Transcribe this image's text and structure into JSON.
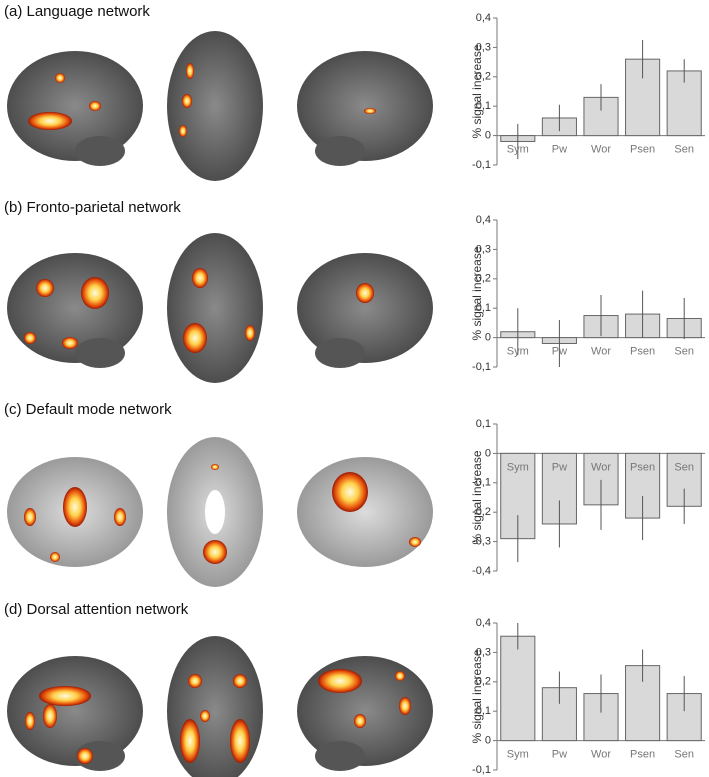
{
  "chart_data": [
    {
      "type": "bar",
      "title": "(a) Language network",
      "y_label": "% signal increase",
      "categories": [
        "Sym",
        "Pw",
        "Wor",
        "Psen",
        "Sen"
      ],
      "values": [
        -0.02,
        0.06,
        0.13,
        0.26,
        0.22
      ],
      "errors": [
        0.06,
        0.045,
        0.045,
        0.065,
        0.04
      ],
      "color": "#d9d9d9",
      "ylim": [
        -0.1,
        0.4
      ],
      "yticks": [
        {
          "value": -0.1,
          "label": "-0,1"
        },
        0,
        {
          "value": 0.1,
          "label": "0,1"
        },
        {
          "value": 0.2,
          "label": "0,2"
        },
        {
          "value": 0.3,
          "label": "0,3"
        },
        {
          "value": 0.4,
          "label": "0,4"
        }
      ]
    },
    {
      "type": "bar",
      "title": "(b) Fronto-parietal network",
      "y_label": "% signal increase",
      "categories": [
        "Sym",
        "Pw",
        "Wor",
        "Psen",
        "Sen"
      ],
      "values": [
        0.02,
        -0.02,
        0.075,
        0.08,
        0.065
      ],
      "errors": [
        0.08,
        0.08,
        0.07,
        0.08,
        0.07
      ],
      "color": "#d9d9d9",
      "ylim": [
        -0.1,
        0.4
      ],
      "yticks": [
        {
          "value": -0.1,
          "label": "-0,1"
        },
        0,
        {
          "value": 0.1,
          "label": "0,1"
        },
        {
          "value": 0.2,
          "label": "0,2"
        },
        {
          "value": 0.3,
          "label": "0,3"
        },
        {
          "value": 0.4,
          "label": "0,4"
        }
      ]
    },
    {
      "type": "bar",
      "title": "(c) Default mode network",
      "y_label": "% signal increase",
      "categories": [
        "Sym",
        "Pw",
        "Wor",
        "Psen",
        "Sen"
      ],
      "values": [
        -0.29,
        -0.24,
        -0.175,
        -0.22,
        -0.18
      ],
      "errors": [
        0.08,
        0.08,
        0.085,
        0.075,
        0.06
      ],
      "color": "#d9d9d9",
      "ylim": [
        -0.4,
        0.1
      ],
      "yticks": [
        {
          "value": -0.4,
          "label": "-0,4"
        },
        {
          "value": -0.3,
          "label": "-0,3"
        },
        {
          "value": -0.2,
          "label": "-0,2"
        },
        {
          "value": -0.1,
          "label": "-0,1"
        },
        0,
        {
          "value": 0.1,
          "label": "0,1"
        }
      ]
    },
    {
      "type": "bar",
      "title": "(d) Dorsal attention network",
      "y_label": "% signal increase",
      "categories": [
        "Sym",
        "Pw",
        "Wor",
        "Psen",
        "Sen"
      ],
      "values": [
        0.355,
        0.18,
        0.16,
        0.255,
        0.16
      ],
      "errors": [
        0.045,
        0.055,
        0.065,
        0.055,
        0.06
      ],
      "color": "#d9d9d9",
      "ylim": [
        -0.1,
        0.4
      ],
      "yticks": [
        {
          "value": -0.1,
          "label": "-0,1"
        },
        0,
        {
          "value": 0.1,
          "label": "0,1"
        },
        {
          "value": 0.2,
          "label": "0,2"
        },
        {
          "value": 0.3,
          "label": "0,3"
        },
        {
          "value": 0.4,
          "label": "0,4"
        }
      ]
    }
  ]
}
